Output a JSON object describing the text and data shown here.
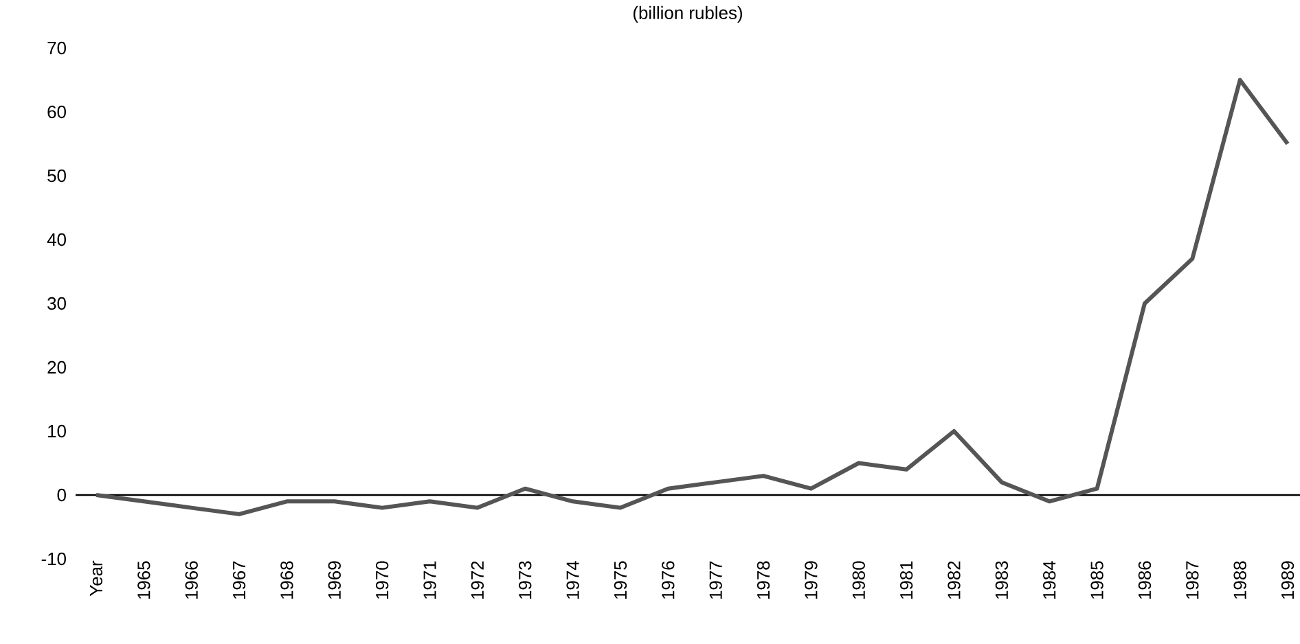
{
  "chart_data": {
    "type": "line",
    "title": "(billion rubles)",
    "categories": [
      "Year",
      "1965",
      "1966",
      "1967",
      "1968",
      "1969",
      "1970",
      "1971",
      "1972",
      "1973",
      "1974",
      "1975",
      "1976",
      "1977",
      "1978",
      "1979",
      "1980",
      "1981",
      "1982",
      "1983",
      "1984",
      "1985",
      "1986",
      "1987",
      "1988",
      "1989"
    ],
    "series": [
      {
        "color": "#555555",
        "values": [
          0,
          -1,
          -2,
          -3,
          -1,
          -1,
          -2,
          -1,
          -2,
          1,
          -1,
          -2,
          1,
          2,
          3,
          1,
          5,
          4,
          10,
          2,
          -1,
          1,
          30,
          37,
          65,
          55
        ]
      }
    ],
    "ylim": [
      -10,
      70
    ],
    "yticks": [
      -10,
      0,
      10,
      20,
      30,
      40,
      50,
      60,
      70
    ],
    "ref_lines": [
      {
        "axis": "y",
        "value": 0,
        "color": "#000000"
      }
    ],
    "grid": false,
    "marker": "none",
    "line_style": "solid"
  }
}
